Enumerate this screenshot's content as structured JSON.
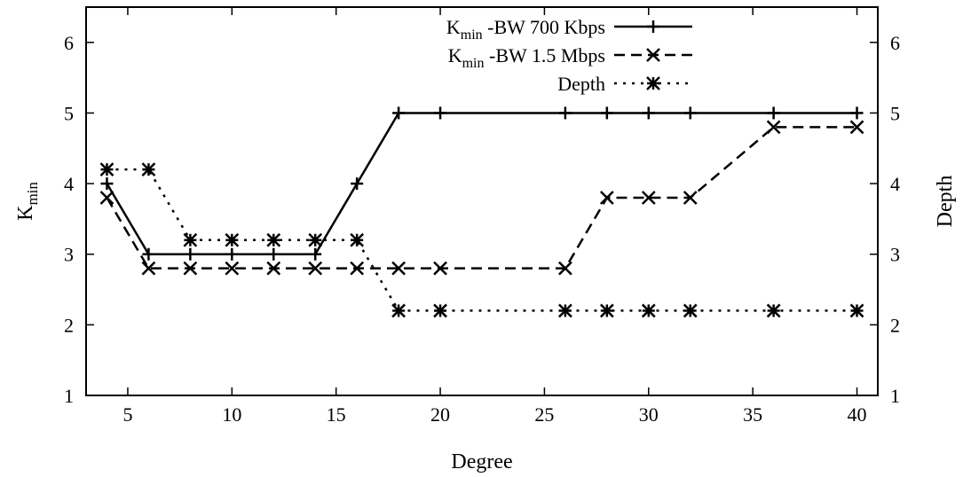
{
  "chart_data": {
    "type": "line",
    "xlabel": "Degree",
    "ylabel": {
      "base": "K",
      "sub": "min"
    },
    "y2label": "Depth",
    "xlim": [
      3,
      41
    ],
    "ylim": [
      1,
      6.5
    ],
    "y2lim": [
      1,
      6.5
    ],
    "xticks": [
      5,
      10,
      15,
      20,
      25,
      30,
      35,
      40
    ],
    "yticks": [
      1,
      2,
      3,
      4,
      5,
      6
    ],
    "y2ticks": [
      1,
      2,
      3,
      4,
      5,
      6
    ],
    "grid": false,
    "legend_position": "top-center",
    "series": [
      {
        "name": "K_min -BW 700 Kbps",
        "legend": {
          "base": "K",
          "sub": "min",
          "rest": " -BW 700 Kbps"
        },
        "style": "solid",
        "marker": "plus",
        "x": [
          4,
          6,
          8,
          10,
          12,
          14,
          16,
          18,
          20,
          26,
          28,
          30,
          32,
          36,
          40
        ],
        "y": [
          4,
          3,
          3,
          3,
          3,
          3,
          4,
          5,
          5,
          5,
          5,
          5,
          5,
          5,
          5
        ]
      },
      {
        "name": "K_min -BW 1.5 Mbps",
        "legend": {
          "base": "K",
          "sub": "min",
          "rest": " -BW 1.5 Mbps"
        },
        "style": "dashed",
        "marker": "cross",
        "x": [
          4,
          6,
          8,
          10,
          12,
          14,
          16,
          18,
          20,
          26,
          28,
          30,
          32,
          36,
          40
        ],
        "y": [
          3.8,
          2.8,
          2.8,
          2.8,
          2.8,
          2.8,
          2.8,
          2.8,
          2.8,
          2.8,
          3.8,
          3.8,
          3.8,
          4.8,
          4.8
        ]
      },
      {
        "name": "Depth",
        "legend": {
          "base": "Depth",
          "sub": "",
          "rest": ""
        },
        "style": "dotted",
        "marker": "star",
        "x": [
          4,
          6,
          8,
          10,
          12,
          14,
          16,
          18,
          20,
          26,
          28,
          30,
          32,
          36,
          40
        ],
        "y": [
          4.2,
          4.2,
          3.2,
          3.2,
          3.2,
          3.2,
          3.2,
          2.2,
          2.2,
          2.2,
          2.2,
          2.2,
          2.2,
          2.2,
          2.2
        ]
      }
    ]
  }
}
